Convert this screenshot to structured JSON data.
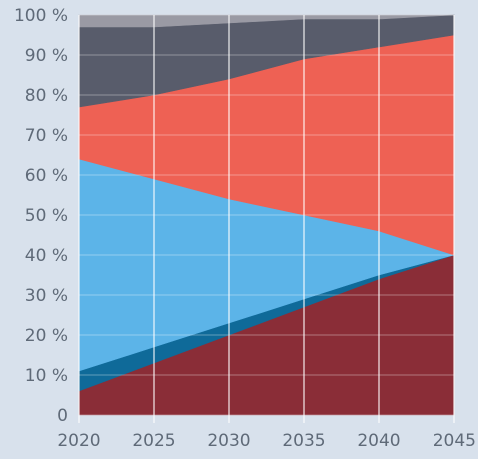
{
  "chart_data": {
    "type": "area",
    "stacked": true,
    "percent_stacked": true,
    "x": [
      2020,
      2025,
      2030,
      2035,
      2040,
      2045
    ],
    "xlim": [
      2020,
      2045
    ],
    "ylim": [
      0,
      100
    ],
    "x_tick_labels": [
      "2020",
      "2025",
      "2030",
      "2035",
      "2040",
      "2045"
    ],
    "y_tick_labels": [
      "0",
      "10 %",
      "20 %",
      "30 %",
      "40 %",
      "50 %",
      "60 %",
      "70 %",
      "80 %",
      "90 %",
      "100 %"
    ],
    "grid": true,
    "legend": "none",
    "series": [
      {
        "color": "#8a2d37",
        "values": [
          6,
          13,
          20,
          27,
          34,
          40
        ]
      },
      {
        "color": "#0f6a99",
        "values": [
          5,
          4,
          3,
          2,
          1,
          0
        ]
      },
      {
        "color": "#5cb4e8",
        "values": [
          53,
          42,
          31,
          21,
          11,
          0
        ]
      },
      {
        "color": "#ee6154",
        "values": [
          13,
          21,
          30,
          39,
          46,
          55
        ]
      },
      {
        "color": "#585c6b",
        "values": [
          20,
          17,
          14,
          10,
          7,
          5
        ]
      },
      {
        "color": "#9a9aa4",
        "values": [
          3,
          3,
          2,
          1,
          1,
          0
        ]
      }
    ]
  }
}
